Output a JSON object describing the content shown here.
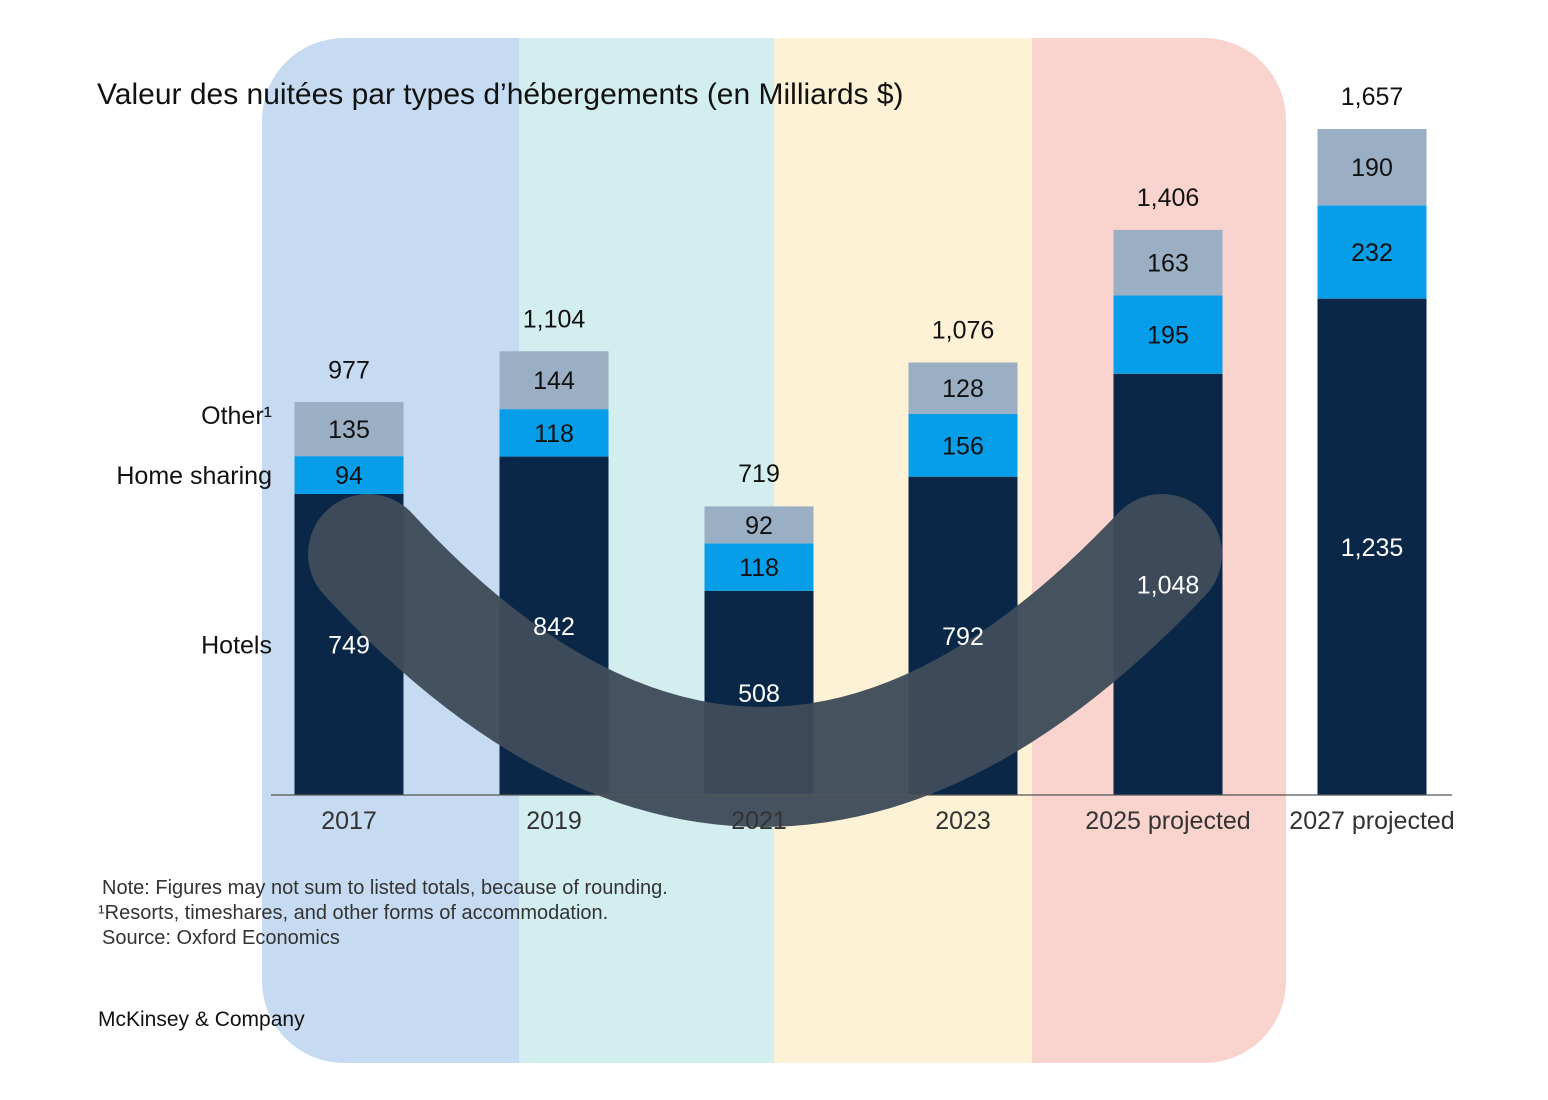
{
  "chart_data": {
    "type": "bar",
    "stacked": true,
    "title": "Valeur des nuitées par types d’hébergements (en Milliards $)",
    "categories": [
      "2017",
      "2019",
      "2021",
      "2023",
      "2025 projected",
      "2027 projected"
    ],
    "series": [
      {
        "name": "Hotels",
        "values": [
          749,
          842,
          508,
          792,
          1048,
          1235
        ]
      },
      {
        "name": "Home sharing",
        "values": [
          94,
          118,
          118,
          156,
          195,
          232
        ]
      },
      {
        "name": "Other¹",
        "values": [
          135,
          144,
          92,
          128,
          163,
          190
        ]
      }
    ],
    "totals": [
      977,
      1104,
      719,
      1076,
      1406,
      1657
    ],
    "value_labels": {
      "Hotels": [
        "749",
        "842",
        "508",
        "792",
        "1,048",
        "1,235"
      ],
      "Home sharing": [
        "94",
        "118",
        "118",
        "156",
        "195",
        "232"
      ],
      "Other¹": [
        "135",
        "144",
        "92",
        "128",
        "163",
        "190"
      ]
    },
    "total_labels": [
      "977",
      "1,104",
      "719",
      "1,076",
      "1,406",
      "1,657"
    ],
    "series_labels": [
      "Hotels",
      "Home sharing",
      "Other¹"
    ],
    "ylim": [
      0,
      1657
    ],
    "xlabel": "",
    "ylabel": "",
    "grid": false,
    "legend": "left of first bar"
  },
  "colors": {
    "hotels": "#0a2747",
    "home_sharing": "#069ee8",
    "other": "#9aaec4",
    "band_blue": "#c6dbf1",
    "band_teal": "#d3eeee",
    "band_yellow": "#fdf2d5",
    "band_pink": "#f9d3ce",
    "curve": "#3e4c5a"
  },
  "notes": {
    "note": "Note: Figures may not sum to listed totals, because of rounding.",
    "footnote": "¹Resorts, timeshares, and other forms of accommodation.",
    "source": "Source: Oxford Economics"
  },
  "brand": "McKinsey & Company"
}
